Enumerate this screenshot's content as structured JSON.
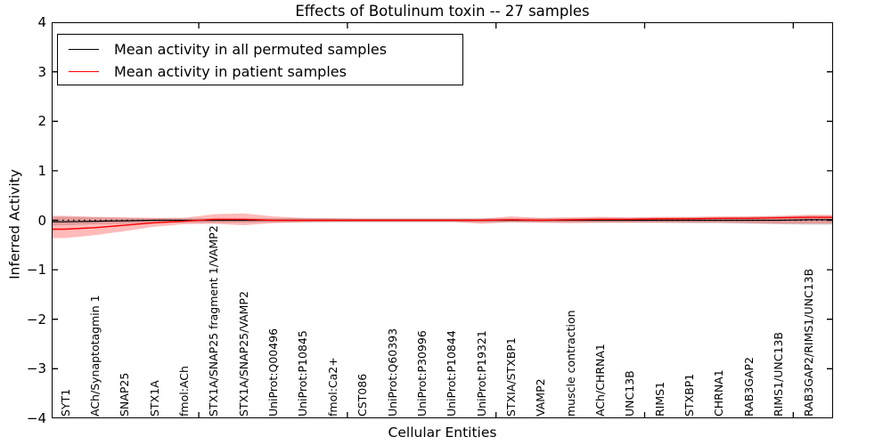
{
  "title": "Effects of Botulinum toxin -- 27 samples",
  "axes": {
    "ylabel": "Inferred Activity",
    "xlabel": "Cellular Entities",
    "ytick_labels": [
      "4",
      "3",
      "2",
      "1",
      "0",
      "−1",
      "−2",
      "−3",
      "−4"
    ],
    "ytick_values": [
      4,
      3,
      2,
      1,
      0,
      -1,
      -2,
      -3,
      -4
    ]
  },
  "legend": {
    "items": [
      {
        "label": "Mean activity in all permuted samples",
        "color": "#000000"
      },
      {
        "label": "Mean activity in patient samples",
        "color": "#ff0000"
      }
    ]
  },
  "colors": {
    "permuted_line": "#000000",
    "patient_line": "#ff0000",
    "patient_band": "rgba(255,0,0,0.27)",
    "permuted_band": "rgba(0,0,0,0.16)",
    "zero_line": "#000000"
  },
  "chart_data": {
    "type": "line",
    "title": "Effects of Botulinum toxin -- 27 samples",
    "xlabel": "Cellular Entities",
    "ylabel": "Inferred Activity",
    "ylim": [
      -4,
      4
    ],
    "grid": false,
    "legend_position": "upper left",
    "zero_line_style": "dotted",
    "categories": [
      "SYT1",
      "ACh/Synaptotagmin 1",
      "SNAP25",
      "STX1A",
      "fmol:ACh",
      "STX1A/SNAP25 fragment 1/VAMP2",
      "STX1A/SNAP25/VAMP2",
      "UniProt:Q00496",
      "UniProt:P10845",
      "fmol:Ca2+",
      "CST086",
      "UniProt:Q60393",
      "UniProt:P30996",
      "UniProt:P10844",
      "UniProt:P19321",
      "STXIA/STXBP1",
      "VAMP2",
      "muscle contraction",
      "ACh/CHRNA1",
      "UNC13B",
      "RIMS1",
      "STXBP1",
      "CHRNA1",
      "RAB3GAP2",
      "RIMS1/UNC13B",
      "RAB3GAP2/RIMS1/UNC13B"
    ],
    "series": [
      {
        "name": "Mean activity in all permuted samples",
        "role": "line",
        "color": "#000000",
        "values": [
          -0.03,
          -0.02,
          -0.01,
          0,
          0,
          0,
          0,
          0,
          0,
          0,
          0,
          0,
          0,
          0,
          0,
          0,
          0,
          0,
          0,
          0,
          0,
          0,
          0,
          0,
          0,
          0.01
        ]
      },
      {
        "name": "Mean activity in patient samples",
        "role": "line",
        "color": "#ff0000",
        "values": [
          -0.18,
          -0.15,
          -0.1,
          -0.05,
          -0.02,
          0.02,
          0.02,
          0,
          0,
          0,
          0,
          0,
          0,
          0,
          0,
          0.01,
          0,
          0.01,
          0.02,
          0.02,
          0.03,
          0.03,
          0.04,
          0.04,
          0.05,
          0.06
        ]
      },
      {
        "name": "patient band upper",
        "role": "band-upper",
        "color": "rgba(255,0,0,0.27)",
        "values": [
          0.09,
          0.07,
          0.06,
          0.05,
          0.05,
          0.12,
          0.14,
          0.08,
          0.05,
          0.04,
          0.03,
          0.03,
          0.03,
          0.03,
          0.03,
          0.08,
          0.05,
          0.06,
          0.07,
          0.06,
          0.07,
          0.07,
          0.08,
          0.08,
          0.09,
          0.11
        ]
      },
      {
        "name": "patient band lower",
        "role": "band-lower",
        "color": "rgba(255,0,0,0.27)",
        "values": [
          -0.36,
          -0.3,
          -0.22,
          -0.13,
          -0.08,
          -0.07,
          -0.1,
          -0.06,
          -0.04,
          -0.03,
          -0.03,
          -0.03,
          -0.03,
          -0.03,
          -0.07,
          -0.04,
          -0.05,
          -0.06,
          -0.05,
          -0.05,
          -0.05,
          -0.05,
          -0.05,
          -0.06,
          -0.07,
          -0.07
        ]
      },
      {
        "name": "permuted band upper",
        "role": "band-upper",
        "color": "rgba(0,0,0,0.16)",
        "values": [
          0.07,
          0.06,
          0.05,
          0.04,
          0.04,
          0.04,
          0.04,
          0.04,
          0.04,
          0.04,
          0.04,
          0.04,
          0.04,
          0.04,
          0.04,
          0.04,
          0.04,
          0.04,
          0.05,
          0.05,
          0.05,
          0.06,
          0.06,
          0.07,
          0.08,
          0.09
        ]
      },
      {
        "name": "permuted band lower",
        "role": "band-lower",
        "color": "rgba(0,0,0,0.16)",
        "values": [
          -0.1,
          -0.08,
          -0.07,
          -0.06,
          -0.05,
          -0.05,
          -0.05,
          -0.04,
          -0.04,
          -0.04,
          -0.04,
          -0.04,
          -0.04,
          -0.04,
          -0.04,
          -0.04,
          -0.04,
          -0.04,
          -0.05,
          -0.05,
          -0.05,
          -0.06,
          -0.06,
          -0.07,
          -0.08,
          -0.09
        ]
      }
    ]
  }
}
